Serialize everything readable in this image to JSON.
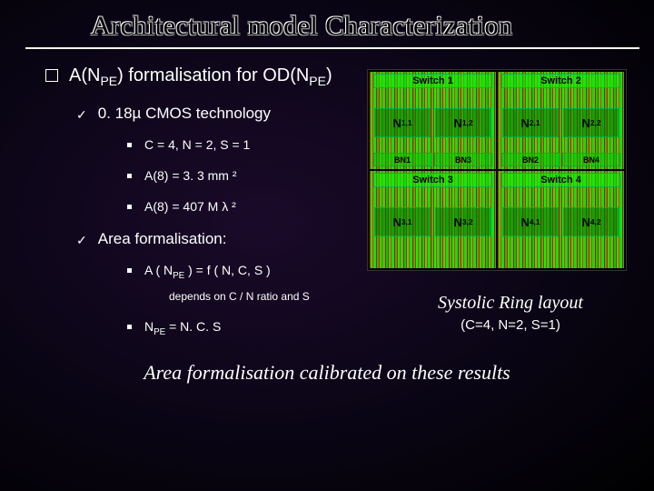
{
  "title": "Architectural model Characterization",
  "lvl1": {
    "text_pre": "A(N",
    "sub1": "PE",
    "text_mid": ") formalisation for OD(N",
    "sub2": "PE",
    "text_post": ")"
  },
  "tech": {
    "label": "0. 18µ CMOS technology",
    "items": [
      "C = 4, N = 2, S = 1",
      "A(8) = 3. 3 mm ²",
      "A(8) = 407 M λ ²"
    ]
  },
  "area": {
    "label": "Area formalisation:",
    "formula_pre": "A ( N",
    "formula_sub": "PE",
    "formula_post": " ) = f ( N, C, S )",
    "depends": "depends on C / N ratio and S",
    "npe_pre": "N",
    "npe_sub": "PE",
    "npe_post": " = N. C. S"
  },
  "figure": {
    "quads": [
      {
        "switch": "Switch 1",
        "n1": "N",
        "n1s": "1,1",
        "n2": "N",
        "n2s": "1,2",
        "bn": [
          "BN1",
          "BN3"
        ]
      },
      {
        "switch": "Switch 2",
        "n1": "N",
        "n1s": "2,1",
        "n2": "N",
        "n2s": "2,2",
        "bn": [
          "BN2",
          "BN4"
        ]
      },
      {
        "switch": "Switch 3",
        "n1": "N",
        "n1s": "3,1",
        "n2": "N",
        "n2s": "3,2",
        "bn": []
      },
      {
        "switch": "Switch 4",
        "n1": "N",
        "n1s": "4,1",
        "n2": "N",
        "n2s": "4,2",
        "bn": []
      }
    ],
    "caption": "Systolic Ring layout",
    "caption2": "(C=4, N=2, S=1)"
  },
  "footer": "Area formalisation calibrated on these results",
  "colors": {
    "bg_center": "#1a0a2a",
    "bg_edge": "#000000",
    "text": "#ffffff",
    "chip_red": "#ff0000",
    "chip_green": "#00ff00",
    "label_green": "rgba(0,255,0,0.5)"
  }
}
